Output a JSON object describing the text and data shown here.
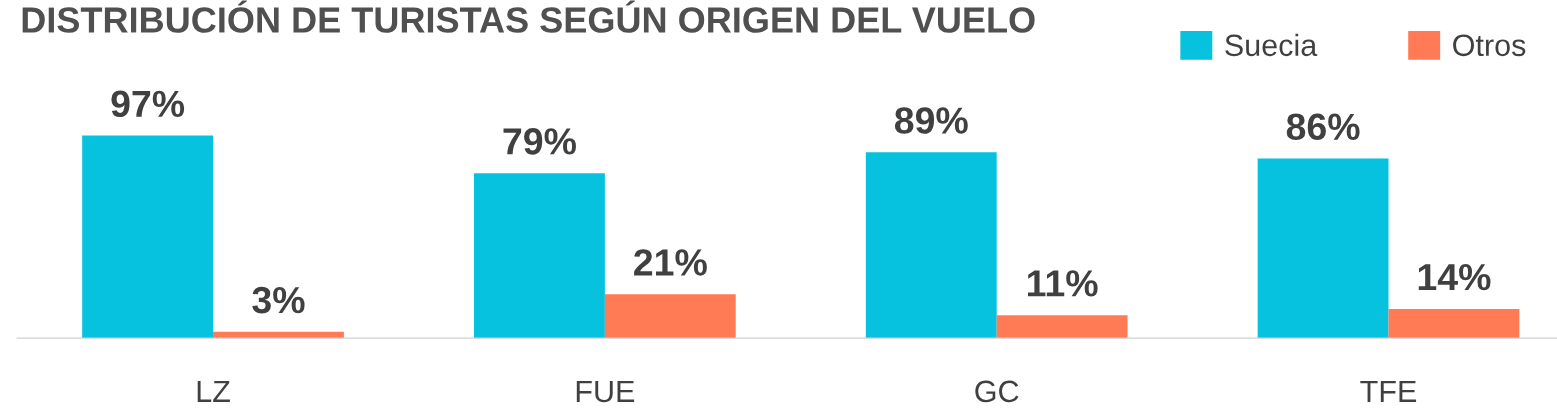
{
  "chart_data": {
    "type": "bar",
    "title": "DISTRIBUCIÓN DE TURISTAS SEGÚN ORIGEN DEL VUELO",
    "categories": [
      "LZ",
      "FUE",
      "GC",
      "TFE"
    ],
    "series": [
      {
        "name": "Suecia",
        "color": "#06c2de",
        "values": [
          97,
          79,
          89,
          86
        ],
        "value_labels": [
          "97%",
          "79%",
          "89%",
          "86%"
        ]
      },
      {
        "name": "Otros",
        "color": "#ff7b55",
        "values": [
          3,
          21,
          11,
          14
        ],
        "value_labels": [
          "3%",
          "21%",
          "11%",
          "14%"
        ]
      }
    ],
    "legend": "top right",
    "grid": false,
    "tick_labels": "x"
  }
}
